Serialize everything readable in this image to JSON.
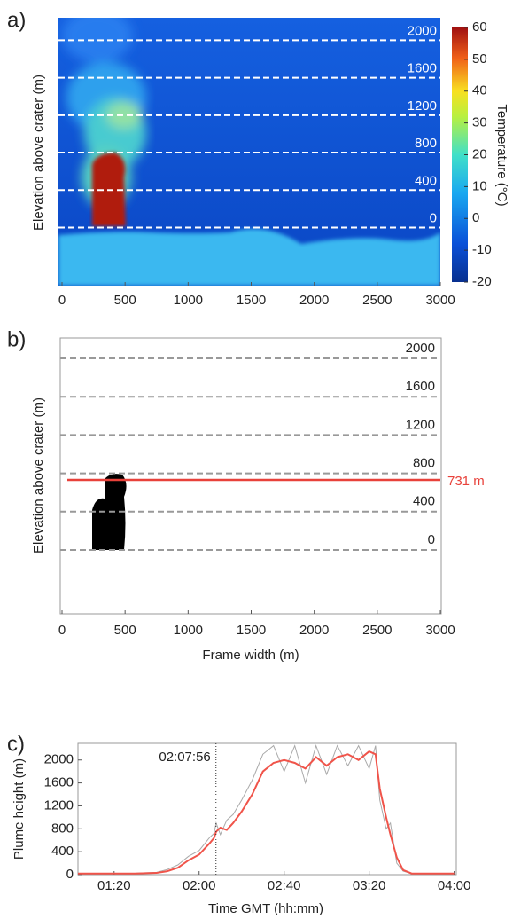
{
  "chart_data": [
    {
      "type": "thermal-image",
      "panel_label": "a)",
      "ylabel": "Elevation above crater (m)",
      "xlim": [
        0,
        3000
      ],
      "xticks": [
        0,
        500,
        1000,
        1500,
        2000,
        2500,
        3000
      ],
      "ylim": [
        -620,
        2240
      ],
      "yticks": [
        0,
        400,
        800,
        1200,
        1600,
        2000
      ],
      "colorbar": {
        "label": "Temperature (°C)",
        "lim": [
          -20,
          60
        ],
        "ticks": [
          60,
          50,
          40,
          30,
          20,
          10,
          0,
          -10,
          -20
        ]
      }
    },
    {
      "type": "mask-image",
      "panel_label": "b)",
      "ylabel": "Elevation above crater (m)",
      "xlabel": "Frame width (m)",
      "xlim": [
        0,
        3000
      ],
      "xticks": [
        0,
        500,
        1000,
        1500,
        2000,
        2500,
        3000
      ],
      "ylim": [
        -667,
        2213
      ],
      "yticks": [
        0,
        400,
        800,
        1200,
        1600,
        2000
      ],
      "hline": {
        "value": 731,
        "label": "731 m",
        "color": "#e8413a"
      }
    },
    {
      "type": "line",
      "panel_label": "c)",
      "ylabel": "Plume height (m)",
      "xlabel": "Time GMT (hh:mm)",
      "xlim": [
        63,
        241
      ],
      "xticks": [
        {
          "value": 80,
          "label": "01:20"
        },
        {
          "value": 120,
          "label": "02:00"
        },
        {
          "value": 160,
          "label": "02:40"
        },
        {
          "value": 200,
          "label": "03:20"
        },
        {
          "value": 240,
          "label": "04:00"
        }
      ],
      "ylim": [
        0,
        2290
      ],
      "yticks": [
        0,
        400,
        800,
        1200,
        1600,
        2000
      ],
      "vline": {
        "value": 127.93,
        "label": "02:07:56"
      },
      "x": [
        63,
        90,
        100,
        105,
        110,
        115,
        120,
        125,
        127,
        128,
        130,
        133,
        136,
        140,
        145,
        150,
        155,
        160,
        165,
        170,
        175,
        180,
        185,
        190,
        195,
        200,
        203,
        205,
        208,
        210,
        213,
        216,
        220,
        240
      ],
      "series": [
        {
          "color": "#a9a9a9",
          "values": [
            20,
            25,
            40,
            90,
            170,
            320,
            420,
            650,
            720,
            900,
            700,
            950,
            1050,
            1300,
            1650,
            2100,
            2250,
            1800,
            2250,
            1600,
            2250,
            1750,
            2250,
            1900,
            2250,
            1850,
            2250,
            1300,
            800,
            900,
            200,
            60,
            20,
            20
          ]
        },
        {
          "color": "#f0544a",
          "values": [
            20,
            20,
            30,
            60,
            120,
            250,
            350,
            550,
            640,
            750,
            820,
            780,
            900,
            1100,
            1400,
            1800,
            1950,
            2000,
            1950,
            1850,
            2050,
            1900,
            2050,
            2100,
            2000,
            2150,
            2100,
            1500,
            1000,
            700,
            300,
            80,
            20,
            20
          ]
        }
      ]
    }
  ]
}
